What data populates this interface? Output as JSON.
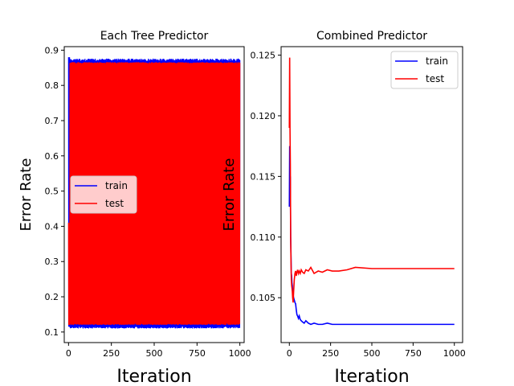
{
  "chart_data": [
    {
      "type": "line",
      "title": "Each Tree Predictor",
      "xlabel": "Iteration",
      "ylabel": "Error Rate",
      "xlim": [
        -25,
        1025
      ],
      "ylim": [
        0.07,
        0.91
      ],
      "xticks": [
        0,
        250,
        500,
        750,
        1000
      ],
      "yticks": [
        0.1,
        0.2,
        0.3,
        0.4,
        0.5,
        0.6,
        0.7,
        0.8,
        0.9
      ],
      "grid": false,
      "legend": "center-left",
      "series": [
        {
          "name": "train",
          "color": "#0000ff",
          "description": "per-tree error oscillating between ~0.11 and ~0.875",
          "low": 0.113,
          "high": 0.872
        },
        {
          "name": "test",
          "color": "#ff0000",
          "description": "per-tree error oscillating between ~0.12 and ~0.865",
          "low": 0.122,
          "high": 0.864
        }
      ]
    },
    {
      "type": "line",
      "title": "Combined Predictor",
      "xlabel": "Iteration",
      "ylabel": "Error Rate",
      "xlim": [
        -50,
        1050
      ],
      "ylim": [
        0.1013,
        0.1257
      ],
      "xticks": [
        0,
        250,
        500,
        750,
        1000
      ],
      "yticks": [
        0.105,
        0.11,
        0.115,
        0.12,
        0.125
      ],
      "grid": false,
      "legend": "top-right",
      "series": [
        {
          "name": "train",
          "color": "#0000ff",
          "x": [
            0,
            2,
            4,
            6,
            8,
            10,
            12,
            14,
            16,
            18,
            20,
            23,
            26,
            30,
            34,
            38,
            42,
            46,
            50,
            55,
            60,
            66,
            72,
            80,
            90,
            100,
            115,
            130,
            150,
            175,
            200,
            230,
            260,
            300,
            350,
            400,
            500,
            600,
            700,
            800,
            900,
            1000
          ],
          "values": [
            0.1125,
            0.1175,
            0.113,
            0.115,
            0.11,
            0.1085,
            0.107,
            0.1068,
            0.1062,
            0.106,
            0.1055,
            0.1052,
            0.105,
            0.1048,
            0.1046,
            0.1045,
            0.104,
            0.1036,
            0.1035,
            0.1033,
            0.1035,
            0.1032,
            0.1031,
            0.103,
            0.1029,
            0.1031,
            0.1029,
            0.1028,
            0.1029,
            0.1028,
            0.1028,
            0.1029,
            0.1028,
            0.1028,
            0.1028,
            0.1028,
            0.1028,
            0.1028,
            0.1028,
            0.1028,
            0.1028,
            0.1028
          ]
        },
        {
          "name": "test",
          "color": "#ff0000",
          "x": [
            0,
            2,
            4,
            6,
            8,
            10,
            12,
            14,
            16,
            18,
            20,
            23,
            26,
            30,
            34,
            38,
            42,
            46,
            50,
            55,
            60,
            66,
            72,
            80,
            90,
            100,
            115,
            130,
            150,
            175,
            200,
            230,
            260,
            300,
            350,
            400,
            500,
            600,
            700,
            800,
            900,
            1000
          ],
          "values": [
            0.119,
            0.1248,
            0.119,
            0.116,
            0.11,
            0.108,
            0.1065,
            0.106,
            0.1058,
            0.1055,
            0.105,
            0.1046,
            0.1055,
            0.1065,
            0.107,
            0.1072,
            0.1068,
            0.1071,
            0.1073,
            0.107,
            0.1072,
            0.107,
            0.1073,
            0.1071,
            0.107,
            0.1073,
            0.1072,
            0.1075,
            0.107,
            0.1072,
            0.1071,
            0.1073,
            0.1072,
            0.1072,
            0.1073,
            0.1075,
            0.1074,
            0.1074,
            0.1074,
            0.1074,
            0.1074,
            0.1074
          ]
        }
      ]
    }
  ]
}
